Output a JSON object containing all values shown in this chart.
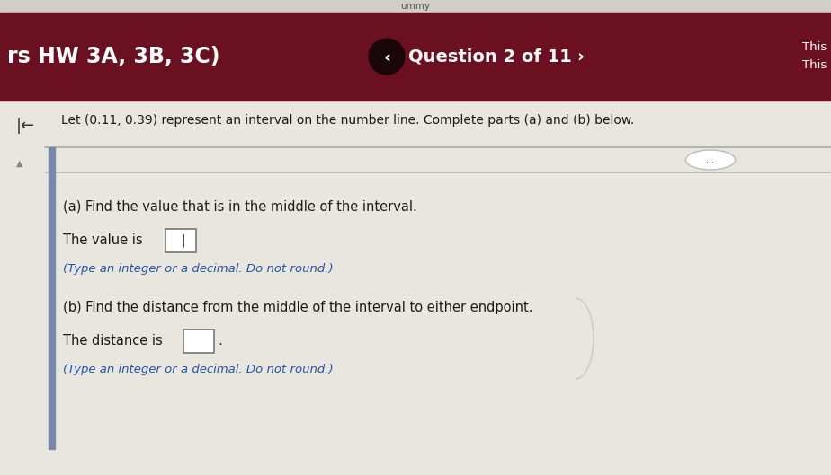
{
  "header_bg_color": "#6B1020",
  "header_text_left": "rs HW 3A, 3B, 3C)",
  "header_text_center": "Question 2 of 11",
  "header_text_right_line1": "This",
  "header_text_right_line2": "This",
  "body_bg_color": "#E8E6DF",
  "body_text_color": "#1a1a1a",
  "blue_text_color": "#2255AA",
  "question_text": "Let (0.11, 0.39) represent an interval on the number line. Complete parts (a) and (b) below.",
  "part_a_title": "(a) Find the value that is in the middle of the interval.",
  "part_a_line1": "The value is ",
  "part_a_line2": "(Type an integer or a decimal. Do not round.)",
  "part_b_title": "(b) Find the distance from the middle of the interval to either endpoint.",
  "part_b_line1": "The distance is ",
  "part_b_line2": "(Type an integer or a decimal. Do not round.)",
  "left_bar_color": "#7788AA",
  "separator_line_color": "#999999",
  "fig_width": 9.24,
  "fig_height": 5.29,
  "dpi": 100
}
